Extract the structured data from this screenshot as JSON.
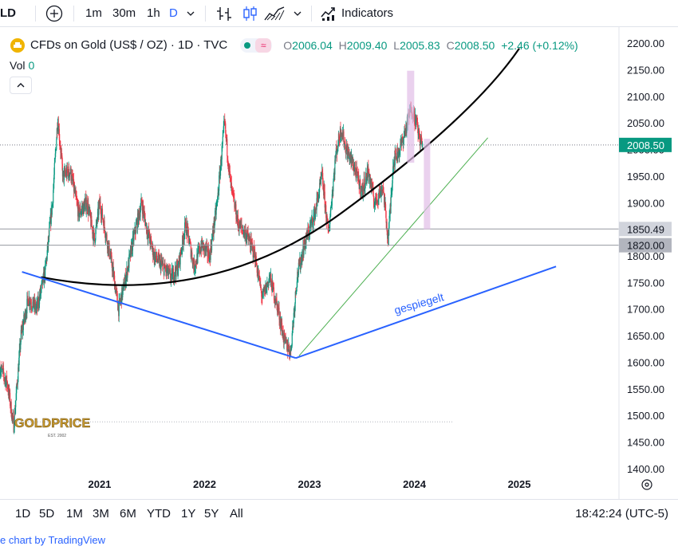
{
  "toolbar": {
    "symbol_fragment": "LD",
    "intervals": [
      "1m",
      "30m",
      "1h",
      "D"
    ],
    "indicators_label": "Indicators"
  },
  "legend": {
    "title": "CFDs on Gold (US$ / OZ) · 1D · TVC",
    "o_label": "O",
    "o_value": "2006.04",
    "h_label": "H",
    "h_value": "2009.40",
    "l_label": "L",
    "l_value": "2005.83",
    "c_label": "C",
    "c_value": "2008.50",
    "change": "+2.46 (+0.12%)",
    "vol_label": "Vol",
    "vol_value": "0"
  },
  "colors": {
    "up": "#089981",
    "down": "#f23645",
    "accent": "#2962ff",
    "trendline": "#2962ff",
    "support": "#4caf50"
  },
  "chart_data": {
    "type": "candlestick",
    "y_ticks": [
      2200,
      2150,
      2100,
      2050,
      2000,
      1950,
      1900,
      1850,
      1800,
      1750,
      1700,
      1650,
      1600,
      1550,
      1500,
      1450,
      1400
    ],
    "ylim": [
      1385,
      2215
    ],
    "x_ticks": [
      {
        "label": "2021",
        "t": 2021.0
      },
      {
        "label": "2022",
        "t": 2022.0
      },
      {
        "label": "2023",
        "t": 2023.0
      },
      {
        "label": "2024",
        "t": 2024.0
      },
      {
        "label": "2025",
        "t": 2025.0
      }
    ],
    "xlim": [
      2020.05,
      2025.95
    ],
    "last_price": 2008.5,
    "price_labels": [
      1850.49,
      1820.0
    ],
    "path": [
      [
        2020.05,
        1590
      ],
      [
        2020.12,
        1560
      ],
      [
        2020.18,
        1480
      ],
      [
        2020.25,
        1650
      ],
      [
        2020.32,
        1720
      ],
      [
        2020.4,
        1700
      ],
      [
        2020.48,
        1770
      ],
      [
        2020.55,
        1900
      ],
      [
        2020.6,
        2060
      ],
      [
        2020.65,
        1950
      ],
      [
        2020.72,
        1960
      ],
      [
        2020.8,
        1880
      ],
      [
        2020.88,
        1900
      ],
      [
        2020.95,
        1830
      ],
      [
        2021.0,
        1900
      ],
      [
        2021.06,
        1840
      ],
      [
        2021.12,
        1780
      ],
      [
        2021.18,
        1700
      ],
      [
        2021.25,
        1760
      ],
      [
        2021.32,
        1830
      ],
      [
        2021.4,
        1900
      ],
      [
        2021.45,
        1850
      ],
      [
        2021.52,
        1800
      ],
      [
        2021.6,
        1780
      ],
      [
        2021.68,
        1760
      ],
      [
        2021.75,
        1780
      ],
      [
        2021.82,
        1860
      ],
      [
        2021.9,
        1780
      ],
      [
        2021.97,
        1820
      ],
      [
        2022.05,
        1800
      ],
      [
        2022.12,
        1900
      ],
      [
        2022.19,
        2050
      ],
      [
        2022.25,
        1930
      ],
      [
        2022.32,
        1860
      ],
      [
        2022.4,
        1840
      ],
      [
        2022.48,
        1800
      ],
      [
        2022.55,
        1720
      ],
      [
        2022.62,
        1760
      ],
      [
        2022.7,
        1700
      ],
      [
        2022.76,
        1640
      ],
      [
        2022.82,
        1620
      ],
      [
        2022.88,
        1760
      ],
      [
        2022.95,
        1820
      ],
      [
        2023.05,
        1880
      ],
      [
        2023.12,
        1950
      ],
      [
        2023.18,
        1840
      ],
      [
        2023.25,
        1990
      ],
      [
        2023.3,
        2040
      ],
      [
        2023.35,
        2000
      ],
      [
        2023.42,
        1970
      ],
      [
        2023.5,
        1920
      ],
      [
        2023.56,
        1960
      ],
      [
        2023.62,
        1900
      ],
      [
        2023.7,
        1930
      ],
      [
        2023.75,
        1830
      ],
      [
        2023.8,
        1980
      ],
      [
        2023.86,
        2000
      ],
      [
        2023.92,
        2040
      ],
      [
        2023.97,
        2080
      ],
      [
        2024.02,
        2050
      ],
      [
        2024.05,
        2020
      ],
      [
        2024.08,
        2008.5
      ]
    ]
  },
  "annotations": {
    "gespiegelt_label": "gespiegelt",
    "logo_text": "GOLDPRICE",
    "logo_sub": "EST. 2002"
  },
  "bottom": {
    "ranges": [
      "1D",
      "5D",
      "1M",
      "3M",
      "6M",
      "YTD",
      "1Y",
      "5Y",
      "All"
    ],
    "clock": "18:42:24 (UTC-5)"
  },
  "footer": {
    "attribution": "e chart by TradingView"
  }
}
